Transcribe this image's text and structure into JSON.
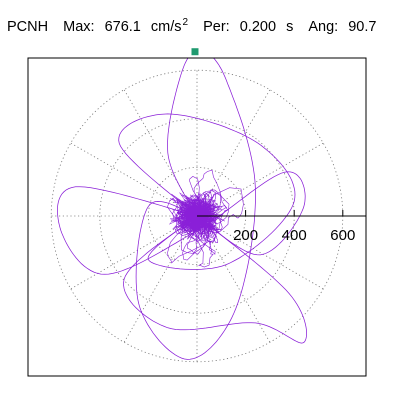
{
  "header": {
    "station": "PCNH",
    "max_label": "Max:",
    "max_value": "676.1",
    "max_unit": "cm/s",
    "max_unit_exp": "2",
    "per_label": "Per:",
    "per_value": "0.200",
    "per_unit": "s",
    "ang_label": "Ang:",
    "ang_value": "90.7"
  },
  "chart_data": {
    "type": "polar-orbit",
    "radial_axis": {
      "ticks": [
        200,
        400,
        600
      ],
      "tick_labels": [
        "200",
        "400",
        "600"
      ],
      "max": 700,
      "unit": "cm/s^2"
    },
    "grid": true,
    "grid_style": "dotted",
    "rings": [
      200,
      400,
      600
    ],
    "spokes_deg": [
      0,
      30,
      60,
      90,
      120,
      150,
      180,
      210,
      240,
      270,
      300,
      330
    ],
    "peak": {
      "magnitude": 676.1,
      "angle_deg": 90.7
    },
    "colors": {
      "trace": "#8a1fd8",
      "peak_marker": "#1f9a6f",
      "grid": "#777777",
      "axis": "#000000"
    }
  }
}
